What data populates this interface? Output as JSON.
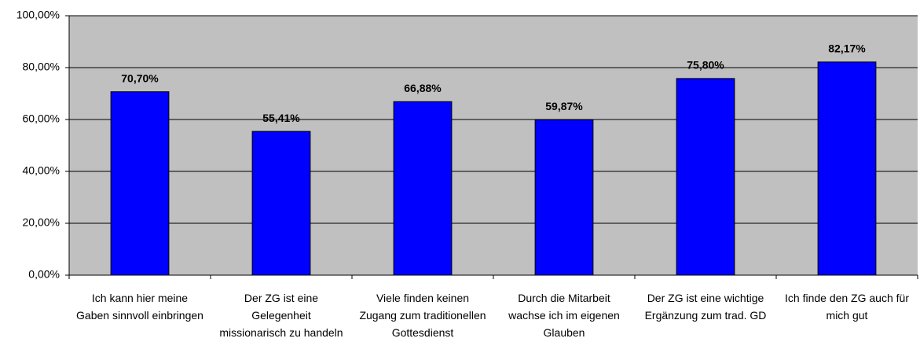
{
  "chart_data": {
    "type": "bar",
    "categories": [
      "Ich kann hier meine Gaben sinnvoll einbringen",
      "Der ZG ist eine Gelegenheit missionarisch zu handeln",
      "Viele finden keinen Zugang zum traditionellen Gottesdienst",
      "Durch die Mitarbeit wachse ich im eigenen Glauben",
      "Der ZG ist eine wichtige Ergänzung zum trad. GD",
      "Ich finde den ZG auch für mich gut"
    ],
    "values": [
      70.7,
      55.41,
      66.88,
      59.87,
      75.8,
      82.17
    ],
    "value_labels": [
      "70,70%",
      "55,41%",
      "66,88%",
      "59,87%",
      "75,80%",
      "82,17%"
    ],
    "color": "#0000ff",
    "ylim": [
      0,
      100
    ],
    "yticks": [
      {
        "value": 0,
        "label": "0,00%"
      },
      {
        "value": 20,
        "label": "20,00%"
      },
      {
        "value": 40,
        "label": "40,00%"
      },
      {
        "value": 60,
        "label": "60,00%"
      },
      {
        "value": 80,
        "label": "80,00%"
      },
      {
        "value": 100,
        "label": "100,00%"
      }
    ],
    "grid": true
  }
}
